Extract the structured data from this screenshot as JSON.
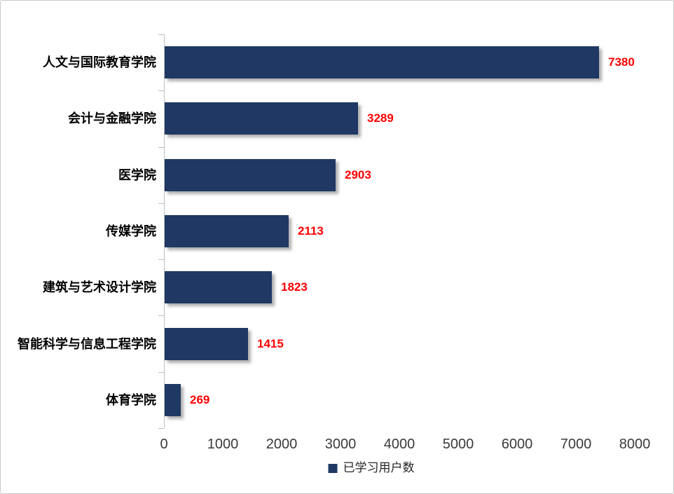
{
  "chart_data": {
    "type": "bar",
    "orientation": "horizontal",
    "title": "",
    "xlabel": "",
    "ylabel": "",
    "categories": [
      "人文与国际教育学院",
      "会计与金融学院",
      "医学院",
      "传媒学院",
      "建筑与艺术设计学院",
      "智能科学与信息工程学院",
      "体育学院"
    ],
    "values": [
      7380,
      3289,
      2903,
      2113,
      1823,
      1415,
      269
    ],
    "series_name": "已学习用户数",
    "xlim": [
      0,
      8000
    ],
    "x_tick_labels": [
      "0",
      "1000",
      "2000",
      "3000",
      "4000",
      "5000",
      "6000",
      "7000",
      "8000"
    ],
    "grid": false,
    "data_labels_shown": true,
    "legend_position": "bottom-center",
    "colors": {
      "bar": "#1f3864",
      "value_label": "#ff0000",
      "axis_line": "#bfbfbf",
      "tick_text": "#3a3a3a",
      "category_text": "#000000"
    },
    "legend": {
      "label": "已学习用户数",
      "swatch_color": "#1f3864"
    }
  }
}
